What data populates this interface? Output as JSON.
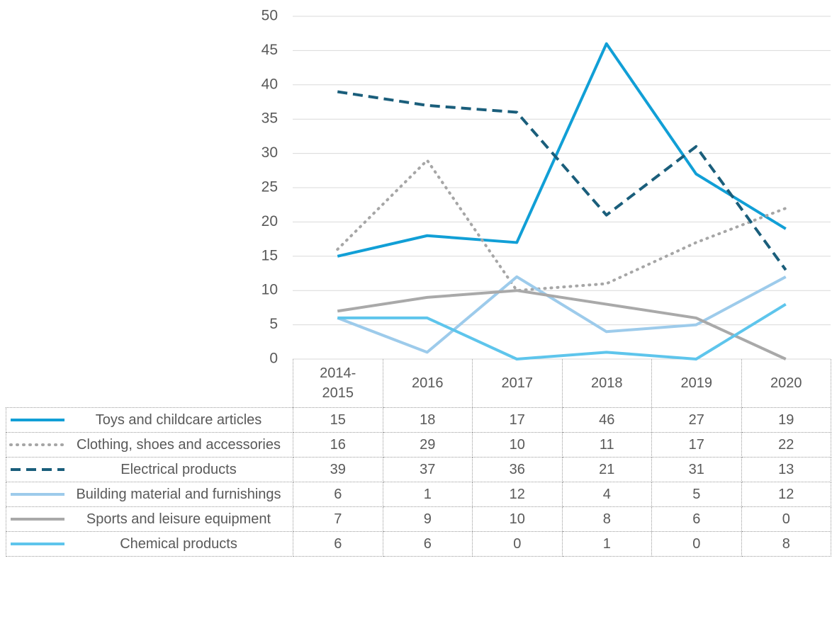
{
  "chart_data": {
    "type": "line",
    "categories": [
      "2014-2015",
      "2016",
      "2017",
      "2018",
      "2019",
      "2020"
    ],
    "series": [
      {
        "name": "Toys and childcare articles",
        "color": "#119fd6",
        "line_style": "solid",
        "values": [
          15,
          18,
          17,
          46,
          27,
          19
        ]
      },
      {
        "name": "Clothing, shoes and accessories",
        "color": "#a6a6a6",
        "line_style": "dotted",
        "values": [
          16,
          29,
          10,
          11,
          17,
          22
        ]
      },
      {
        "name": "Electrical products",
        "color": "#1a5e7b",
        "line_style": "dashed",
        "values": [
          39,
          37,
          36,
          21,
          31,
          13
        ]
      },
      {
        "name": "Building material and furnishings",
        "color": "#9dcbeb",
        "line_style": "solid",
        "values": [
          6,
          1,
          12,
          4,
          5,
          12
        ]
      },
      {
        "name": "Sports and leisure equipment",
        "color": "#a9a9a9",
        "line_style": "solid",
        "values": [
          7,
          9,
          10,
          8,
          6,
          0
        ]
      },
      {
        "name": "Chemical products",
        "color": "#5ec5ec",
        "line_style": "solid",
        "values": [
          6,
          6,
          0,
          1,
          0,
          8
        ]
      }
    ],
    "ylim": [
      0,
      50
    ],
    "yticks": [
      0,
      5,
      10,
      15,
      20,
      25,
      30,
      35,
      40,
      45,
      50
    ],
    "grid": true,
    "data_table": true
  }
}
